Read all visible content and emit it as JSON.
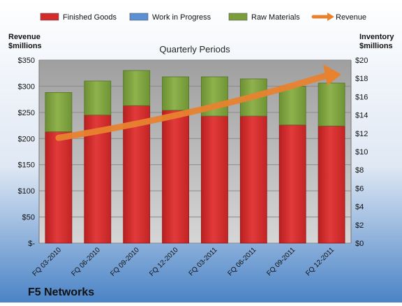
{
  "chart_data": {
    "type": "bar",
    "title": "Quarterly Periods",
    "company": "F5 Networks",
    "ylabel_left": [
      "Revenue",
      "$millions"
    ],
    "ylabel_right": [
      "Inventory",
      "$millions"
    ],
    "categories": [
      "FQ 03-2010",
      "FQ 06-2010",
      "FQ 09-2010",
      "FQ 12-2010",
      "FQ 03-2011",
      "FQ 06-2011",
      "FQ 09-2011",
      "FQ 12-2011"
    ],
    "left_axis": {
      "ylim": [
        0,
        350
      ],
      "ticks": [
        0,
        50,
        100,
        150,
        200,
        250,
        300,
        350
      ],
      "tick_labels": [
        "$-",
        "$50",
        "$100",
        "$150",
        "$200",
        "$250",
        "$300",
        "$350"
      ]
    },
    "right_axis": {
      "ylim": [
        0,
        20
      ],
      "ticks": [
        0,
        2,
        4,
        6,
        8,
        10,
        12,
        14,
        16,
        18,
        20
      ],
      "tick_labels": [
        "$0",
        "$2",
        "$4",
        "$6",
        "$8",
        "$10",
        "$12",
        "$14",
        "$16",
        "$18",
        "$20"
      ]
    },
    "legend": [
      {
        "name": "Finished Goods",
        "color": "#d42a2a",
        "kind": "bar"
      },
      {
        "name": "Work in Progress",
        "color": "#5b8fd6",
        "kind": "bar"
      },
      {
        "name": "Raw Materials",
        "color": "#7a9e3c",
        "kind": "bar"
      },
      {
        "name": "Revenue",
        "color": "#e8822f",
        "kind": "arrow"
      }
    ],
    "legend_position": "top",
    "stacked": true,
    "series": [
      {
        "name": "Finished Goods",
        "axis": "left",
        "values": [
          213,
          245,
          263,
          254,
          243,
          243,
          226,
          224
        ]
      },
      {
        "name": "Work in Progress",
        "axis": "left",
        "values": [
          0,
          0,
          0,
          0,
          0,
          0,
          0,
          0
        ]
      },
      {
        "name": "Raw Materials",
        "axis": "left",
        "values": [
          75,
          65,
          67,
          64,
          75,
          71,
          74,
          82
        ]
      }
    ],
    "revenue_trend": {
      "name": "Revenue",
      "axis": "right",
      "start": 11.5,
      "end": 18.6,
      "style": "arrow"
    },
    "colors": {
      "plot_bg": "#c2c2c2",
      "page_bg_top": "#ffffff",
      "page_bg_bottom": "#4a83c6",
      "finished": "#d42a2a",
      "raw": "#7a9e3c",
      "wip": "#5b8fd6",
      "revenue": "#e8822f"
    },
    "grid": true
  }
}
